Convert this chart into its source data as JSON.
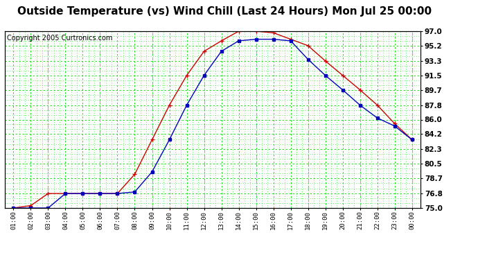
{
  "title": "Outside Temperature (vs) Wind Chill (Last 24 Hours) Mon Jul 25 00:00",
  "copyright": "Copyright 2005 Curtronics.com",
  "hours": [
    "01:00",
    "02:00",
    "03:00",
    "04:00",
    "05:00",
    "06:00",
    "07:00",
    "08:00",
    "09:00",
    "10:00",
    "11:00",
    "12:00",
    "13:00",
    "14:00",
    "15:00",
    "16:00",
    "17:00",
    "18:00",
    "19:00",
    "20:00",
    "21:00",
    "22:00",
    "23:00",
    "00:00"
  ],
  "red_line": [
    75.0,
    75.3,
    76.8,
    76.8,
    76.8,
    76.8,
    76.8,
    79.2,
    83.5,
    87.8,
    91.5,
    94.5,
    95.8,
    97.0,
    97.0,
    96.8,
    96.0,
    95.2,
    93.3,
    91.5,
    89.7,
    87.8,
    85.5,
    83.5
  ],
  "blue_line": [
    75.0,
    75.0,
    75.0,
    76.8,
    76.8,
    76.8,
    76.8,
    77.0,
    79.5,
    83.5,
    87.8,
    91.5,
    94.5,
    95.8,
    96.0,
    96.0,
    95.8,
    93.5,
    91.5,
    89.7,
    87.8,
    86.2,
    85.2,
    83.5
  ],
  "ymin": 75.0,
  "ymax": 97.0,
  "yticks": [
    75.0,
    76.8,
    78.7,
    80.5,
    82.3,
    84.2,
    86.0,
    87.8,
    89.7,
    91.5,
    93.3,
    95.2,
    97.0
  ],
  "red_color": "#cc0000",
  "blue_color": "#0000bb",
  "bg_color": "#ffffff",
  "grid_color_green": "#00dd00",
  "grid_color_gray": "#aaaaaa",
  "title_fontsize": 11,
  "copyright_fontsize": 7
}
